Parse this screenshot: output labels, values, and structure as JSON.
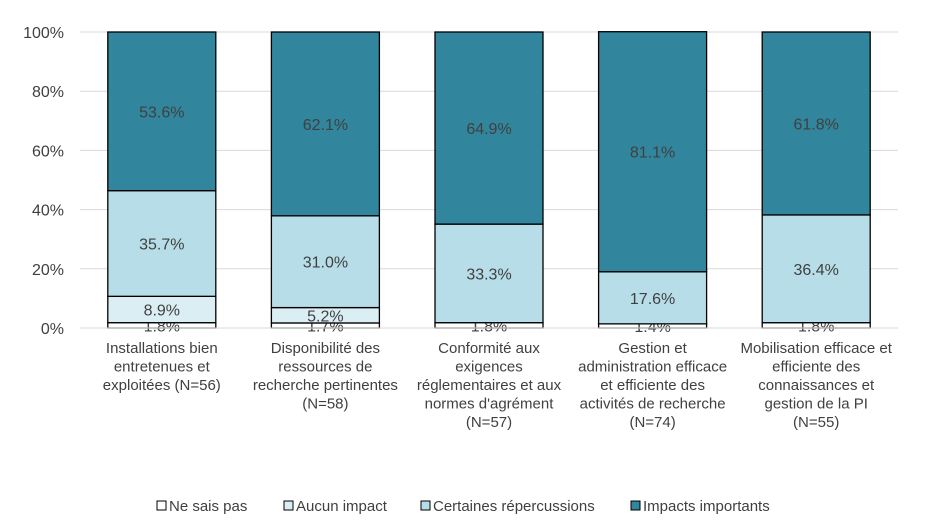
{
  "chart_data": {
    "type": "bar",
    "stacked": true,
    "percent": true,
    "ylim": [
      0,
      100
    ],
    "yticks": [
      "0%",
      "20%",
      "40%",
      "60%",
      "80%",
      "100%"
    ],
    "grid": true,
    "legend_position": "bottom",
    "categories": [
      [
        "Installations bien",
        "entretenues et",
        "exploitées (N=56)"
      ],
      [
        "Disponibilité des",
        "ressources de",
        "recherche pertinentes",
        "(N=58)"
      ],
      [
        "Conformité aux",
        "exigences",
        "réglementaires et aux",
        "normes d'agrément",
        "(N=57)"
      ],
      [
        "Gestion et",
        "administration efficace",
        "et efficiente des",
        "activités de recherche",
        "(N=74)"
      ],
      [
        "Mobilisation efficace et",
        "efficiente des",
        "connaissances et",
        "gestion de la PI",
        "(N=55)"
      ]
    ],
    "series": [
      {
        "name": "Ne sais pas",
        "color": "#ffffff",
        "values": [
          1.8,
          1.7,
          1.8,
          1.4,
          1.8
        ],
        "labels": [
          "1.8%",
          "1.7%",
          "1.8%",
          "1.4%",
          "1.8%"
        ]
      },
      {
        "name": "Aucun impact",
        "color": "#dbeef4",
        "values": [
          8.9,
          5.2,
          0,
          0,
          0
        ],
        "labels": [
          "8.9%",
          "5.2%",
          "",
          "",
          ""
        ]
      },
      {
        "name": "Certaines répercussions",
        "color": "#b7dde8",
        "values": [
          35.7,
          31.0,
          33.3,
          17.6,
          36.4
        ],
        "labels": [
          "35.7%",
          "31.0%",
          "33.3%",
          "17.6%",
          "36.4%"
        ]
      },
      {
        "name": "Impacts importants",
        "color": "#31859c",
        "values": [
          53.6,
          62.1,
          64.9,
          81.1,
          61.8
        ],
        "labels": [
          "53.6%",
          "62.1%",
          "64.9%",
          "81.1%",
          "61.8%"
        ]
      }
    ]
  }
}
